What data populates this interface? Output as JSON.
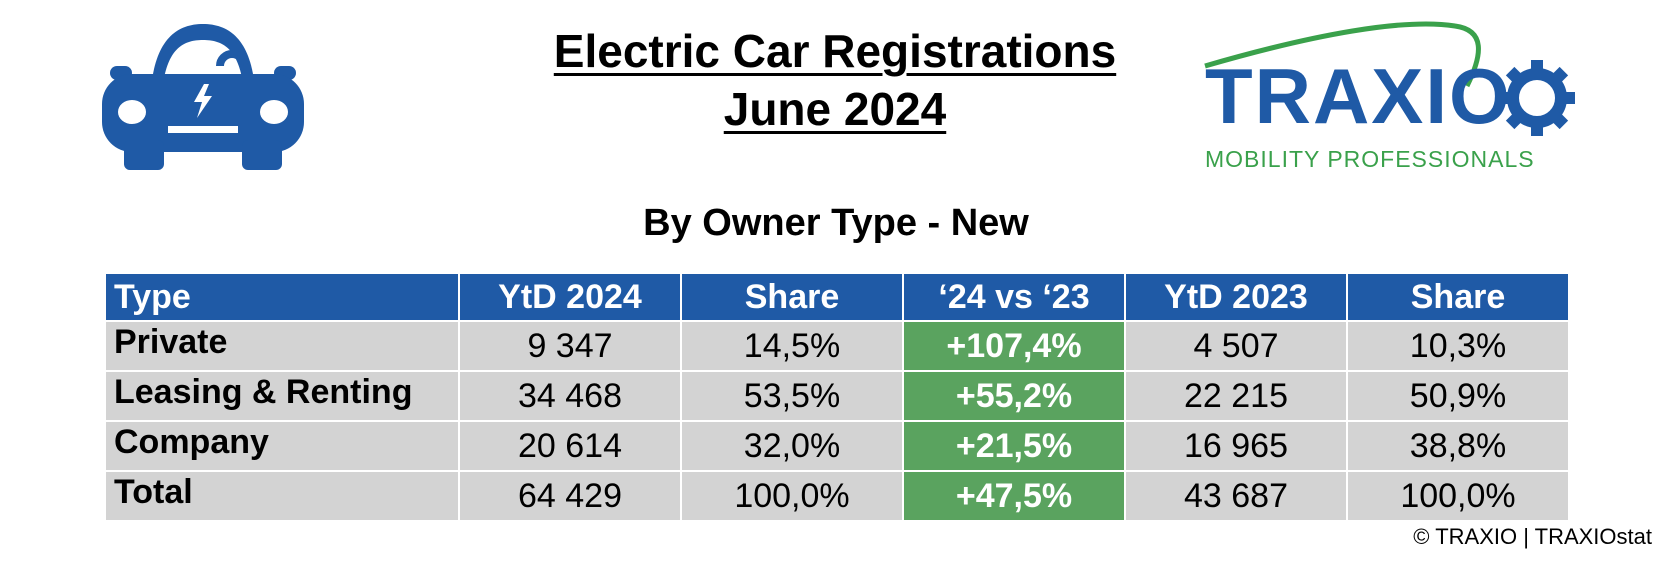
{
  "header": {
    "title_line1": "Electric Car Registrations",
    "title_line2": "June 2024",
    "subtitle": "By Owner Type - New"
  },
  "logo": {
    "name": "TRAXIO",
    "tagline": "MOBILITY PROFESSIONALS",
    "icon": "gear-icon",
    "colors": {
      "blue": "#1f5aa6",
      "green": "#3aa14b"
    }
  },
  "car_icon": {
    "icon": "electric-car-icon",
    "color": "#1f5aa6"
  },
  "table": {
    "columns": [
      "Type",
      "YtD 2024",
      "Share",
      "‘24 vs ‘23",
      "YtD 2023",
      "Share"
    ],
    "rows": [
      [
        "Private",
        "9 347",
        "14,5%",
        "+107,4%",
        "4 507",
        "10,3%"
      ],
      [
        "Leasing & Renting",
        "34 468",
        "53,5%",
        "+55,2%",
        "22 215",
        "50,9%"
      ],
      [
        "Company",
        "20 614",
        "32,0%",
        "+21,5%",
        "16 965",
        "38,8%"
      ],
      [
        "Total",
        "64 429",
        "100,0%",
        "+47,5%",
        "43 687",
        "100,0%"
      ]
    ],
    "colors": {
      "header_bg": "#1f5aa6",
      "cell_bg": "#d3d3d3",
      "growth_bg": "#5aa35f"
    }
  },
  "footer": {
    "copyright": "© TRAXIO | TRAXIOstat"
  }
}
